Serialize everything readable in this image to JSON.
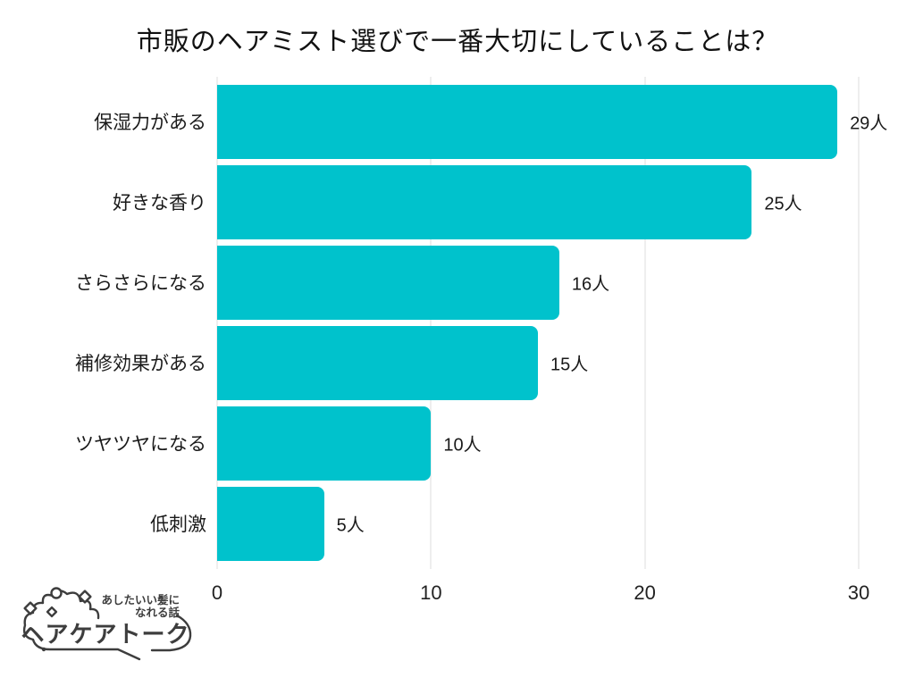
{
  "chart_data": {
    "type": "bar",
    "orientation": "horizontal",
    "title": "市販のヘアミスト選びで一番大切にしていることは？",
    "categories": [
      "保湿力がある",
      "好きな香り",
      "さらさらになる",
      "補修効果がある",
      "ツヤツヤになる",
      "低刺激"
    ],
    "values": [
      29,
      25,
      16,
      15,
      10,
      5
    ],
    "value_labels": [
      "29人",
      "25人",
      "16人",
      "15人",
      "10人",
      "5人"
    ],
    "unit": "人",
    "xlim": [
      0,
      30
    ],
    "x_ticks": [
      0,
      10,
      20,
      30
    ],
    "x_tick_labels": [
      "0",
      "10",
      "20",
      "30"
    ],
    "grid": true,
    "legend": "none",
    "colors": {
      "bar": "#00c2cc",
      "gridline": "#dedede",
      "text": "#1a1a1a",
      "background": "#ffffff"
    }
  },
  "logo": {
    "tagline_line1": "あしたいい髪に",
    "tagline_line2": "なれる話",
    "brand": "ヘアケアトーク",
    "color": "#3d3d3d"
  }
}
